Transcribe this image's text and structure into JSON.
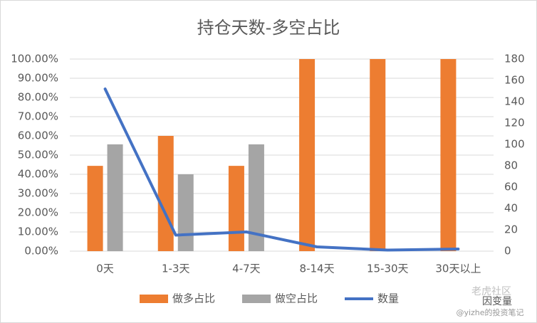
{
  "chart_data": {
    "type": "bar-line",
    "title": "持仓天数-多空占比",
    "categories": [
      "0天",
      "1-3天",
      "4-7天",
      "8-14天",
      "15-30天",
      "30天以上"
    ],
    "series": [
      {
        "name": "做多占比",
        "color": "#ed7d31",
        "type": "bar",
        "values": [
          44.4,
          60,
          44.4,
          100,
          100,
          100
        ]
      },
      {
        "name": "做空占比",
        "color": "#a5a5a5",
        "type": "bar",
        "values": [
          55.6,
          40,
          55.6,
          0,
          0,
          0
        ]
      },
      {
        "name": "数量",
        "color": "#4472c4",
        "type": "line",
        "axis": "y2",
        "values": [
          152,
          15,
          18,
          4,
          1,
          2
        ]
      }
    ],
    "ylim": [
      0,
      100
    ],
    "yticks": [
      {
        "value": 0,
        "label": "0.00%"
      },
      {
        "value": 10,
        "label": "10.00%"
      },
      {
        "value": 20,
        "label": "20.00%"
      },
      {
        "value": 30,
        "label": "30.00%"
      },
      {
        "value": 40,
        "label": "40.00%"
      },
      {
        "value": 50,
        "label": "50.00%"
      },
      {
        "value": 60,
        "label": "60.00%"
      },
      {
        "value": 70,
        "label": "70.00%"
      },
      {
        "value": 80,
        "label": "80.00%"
      },
      {
        "value": 90,
        "label": "90.00%"
      },
      {
        "value": 100,
        "label": "100.00%"
      }
    ],
    "y2lim": [
      0,
      180
    ],
    "y2ticks": [
      0,
      20,
      40,
      60,
      80,
      100,
      120,
      140,
      160,
      180
    ],
    "grid": true,
    "legend": "bottom",
    "watermark": [
      "老虎社区",
      "因变量",
      "@yizhe的投资笔记"
    ]
  }
}
